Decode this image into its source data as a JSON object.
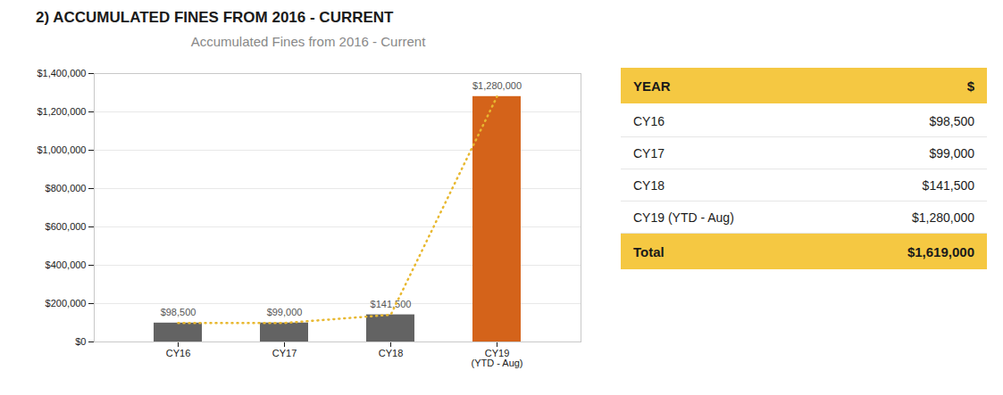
{
  "title": "2) ACCUMULATED FINES FROM 2016 - CURRENT",
  "chart_data": [
    {
      "type": "bar",
      "title": "Accumulated Fines from 2016 - Current",
      "categories": [
        "CY16",
        "CY17",
        "CY18",
        "CY19\n(YTD - Aug)"
      ],
      "series": [
        {
          "type": "bar",
          "values": [
            98500,
            99000,
            141500,
            1280000
          ],
          "colors": [
            "#636363",
            "#636363",
            "#636363",
            "#d4631a"
          ],
          "value_labels": [
            "$98,500",
            "$99,000",
            "$141,500",
            "$1,280,000"
          ],
          "data_labels": true
        },
        {
          "type": "line",
          "values": [
            98500,
            99000,
            141500,
            1280000
          ],
          "color": "#e8b830",
          "line_style": "dotted"
        }
      ],
      "ylim": [
        0,
        1400000
      ],
      "yticks": [
        {
          "value": 0,
          "label": "$0"
        },
        {
          "value": 200000,
          "label": "$200,000"
        },
        {
          "value": 400000,
          "label": "$400,000"
        },
        {
          "value": 600000,
          "label": "$600,000"
        },
        {
          "value": 800000,
          "label": "$800,000"
        },
        {
          "value": 1000000,
          "label": "$1,000,000"
        },
        {
          "value": 1200000,
          "label": "$1,200,000"
        },
        {
          "value": 1400000,
          "label": "$1,400,000"
        }
      ],
      "grid": true
    },
    {
      "type": "table",
      "columns": [
        "YEAR",
        "$"
      ],
      "rows": [
        [
          "CY16",
          "$98,500"
        ],
        [
          "CY17",
          "$99,000"
        ],
        [
          "CY18",
          "$141,500"
        ],
        [
          "CY19 (YTD - Aug)",
          "$1,280,000"
        ]
      ],
      "total": [
        "Total",
        "$1,619,000"
      ],
      "color": "#f5c842"
    }
  ]
}
